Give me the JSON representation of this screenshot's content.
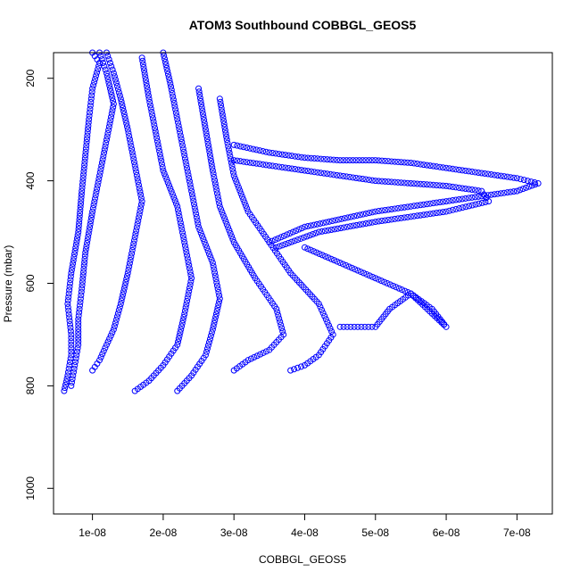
{
  "chart_data": {
    "type": "scatter",
    "title": "ATOM3 Southbound COBBGL_GEOS5",
    "xlabel": "COBBGL_GEOS5",
    "ylabel": "Pressure (mbar)",
    "xlim": [
      4.5e-09,
      7.5e-08
    ],
    "ylim": [
      1050,
      150
    ],
    "y_axis_inverted": true,
    "x_ticks": [
      1e-08,
      2e-08,
      3e-08,
      4e-08,
      5e-08,
      6e-08,
      7e-08
    ],
    "x_tick_labels": [
      "1e-08",
      "2e-08",
      "3e-08",
      "4e-08",
      "5e-08",
      "6e-08",
      "7e-08"
    ],
    "y_ticks": [
      200,
      400,
      600,
      800,
      1000
    ],
    "y_tick_labels": [
      "200",
      "400",
      "600",
      "800",
      "1000"
    ],
    "marker": "open-circle",
    "color": "#0000ff",
    "grid": false,
    "legend": "none",
    "series": [
      {
        "x": [
          6e-09,
          6.5e-09,
          7e-09,
          7e-09,
          6.5e-09,
          7e-09,
          8e-09,
          8.5e-09,
          9e-09,
          9.5e-09,
          1e-08,
          1.1e-08,
          1e-08
        ],
        "y": [
          810,
          780,
          740,
          700,
          640,
          580,
          500,
          420,
          350,
          280,
          220,
          170,
          150
        ]
      },
      {
        "x": [
          7e-09,
          7.5e-09,
          8e-09,
          8e-09,
          8.5e-09,
          9e-09,
          1e-08,
          1.1e-08,
          1.2e-08,
          1.3e-08,
          1.2e-08,
          1.1e-08
        ],
        "y": [
          800,
          760,
          720,
          670,
          610,
          540,
          460,
          390,
          320,
          250,
          190,
          150
        ]
      },
      {
        "x": [
          1e-08,
          1.1e-08,
          1.2e-08,
          1.3e-08,
          1.4e-08,
          1.5e-08,
          1.6e-08,
          1.7e-08,
          1.6e-08,
          1.5e-08,
          1.4e-08,
          1.3e-08,
          1.2e-08
        ],
        "y": [
          770,
          750,
          720,
          690,
          640,
          580,
          510,
          440,
          370,
          300,
          240,
          190,
          150
        ]
      },
      {
        "x": [
          1.6e-08,
          1.8e-08,
          2e-08,
          2.2e-08,
          2.3e-08,
          2.4e-08,
          2.3e-08,
          2.2e-08,
          2e-08,
          1.9e-08,
          1.8e-08,
          1.7e-08
        ],
        "y": [
          810,
          790,
          760,
          720,
          660,
          590,
          520,
          450,
          380,
          310,
          240,
          160
        ]
      },
      {
        "x": [
          2.2e-08,
          2.4e-08,
          2.6e-08,
          2.7e-08,
          2.8e-08,
          2.7e-08,
          2.5e-08,
          2.4e-08,
          2.3e-08,
          2.2e-08,
          2.1e-08,
          2e-08
        ],
        "y": [
          810,
          780,
          740,
          690,
          630,
          560,
          490,
          420,
          350,
          280,
          210,
          150
        ]
      },
      {
        "x": [
          3e-08,
          3.2e-08,
          3.5e-08,
          3.7e-08,
          3.6e-08,
          3.3e-08,
          3e-08,
          2.8e-08,
          2.7e-08,
          2.6e-08,
          2.5e-08
        ],
        "y": [
          770,
          750,
          730,
          700,
          650,
          590,
          520,
          450,
          380,
          300,
          220
        ]
      },
      {
        "x": [
          3.8e-08,
          4e-08,
          4.2e-08,
          4.4e-08,
          4.2e-08,
          3.8e-08,
          3.5e-08,
          3.2e-08,
          3e-08,
          2.9e-08,
          2.8e-08
        ],
        "y": [
          770,
          760,
          740,
          700,
          640,
          580,
          520,
          460,
          390,
          320,
          240
        ]
      },
      {
        "x": [
          4.5e-08,
          4.7e-08,
          5e-08,
          5.2e-08,
          5.5e-08,
          5.8e-08,
          6e-08,
          5.5e-08,
          5e-08,
          4.5e-08,
          4e-08
        ],
        "y": [
          685,
          685,
          685,
          650,
          620,
          650,
          685,
          620,
          590,
          560,
          530
        ]
      },
      {
        "x": [
          3e-08,
          3.5e-08,
          4e-08,
          4.5e-08,
          5e-08,
          5.5e-08,
          6e-08,
          6.5e-08,
          7e-08,
          7.3e-08,
          7e-08,
          6e-08,
          5e-08,
          4e-08,
          3.5e-08
        ],
        "y": [
          330,
          345,
          355,
          360,
          360,
          365,
          375,
          385,
          395,
          405,
          420,
          440,
          460,
          490,
          520
        ]
      },
      {
        "x": [
          3e-08,
          3.5e-08,
          4e-08,
          4.5e-08,
          5e-08,
          5.5e-08,
          6e-08,
          6.5e-08,
          6.6e-08,
          6e-08,
          5e-08,
          4.2e-08,
          3.6e-08
        ],
        "y": [
          360,
          370,
          380,
          390,
          400,
          405,
          410,
          420,
          440,
          460,
          480,
          500,
          530
        ]
      }
    ]
  }
}
